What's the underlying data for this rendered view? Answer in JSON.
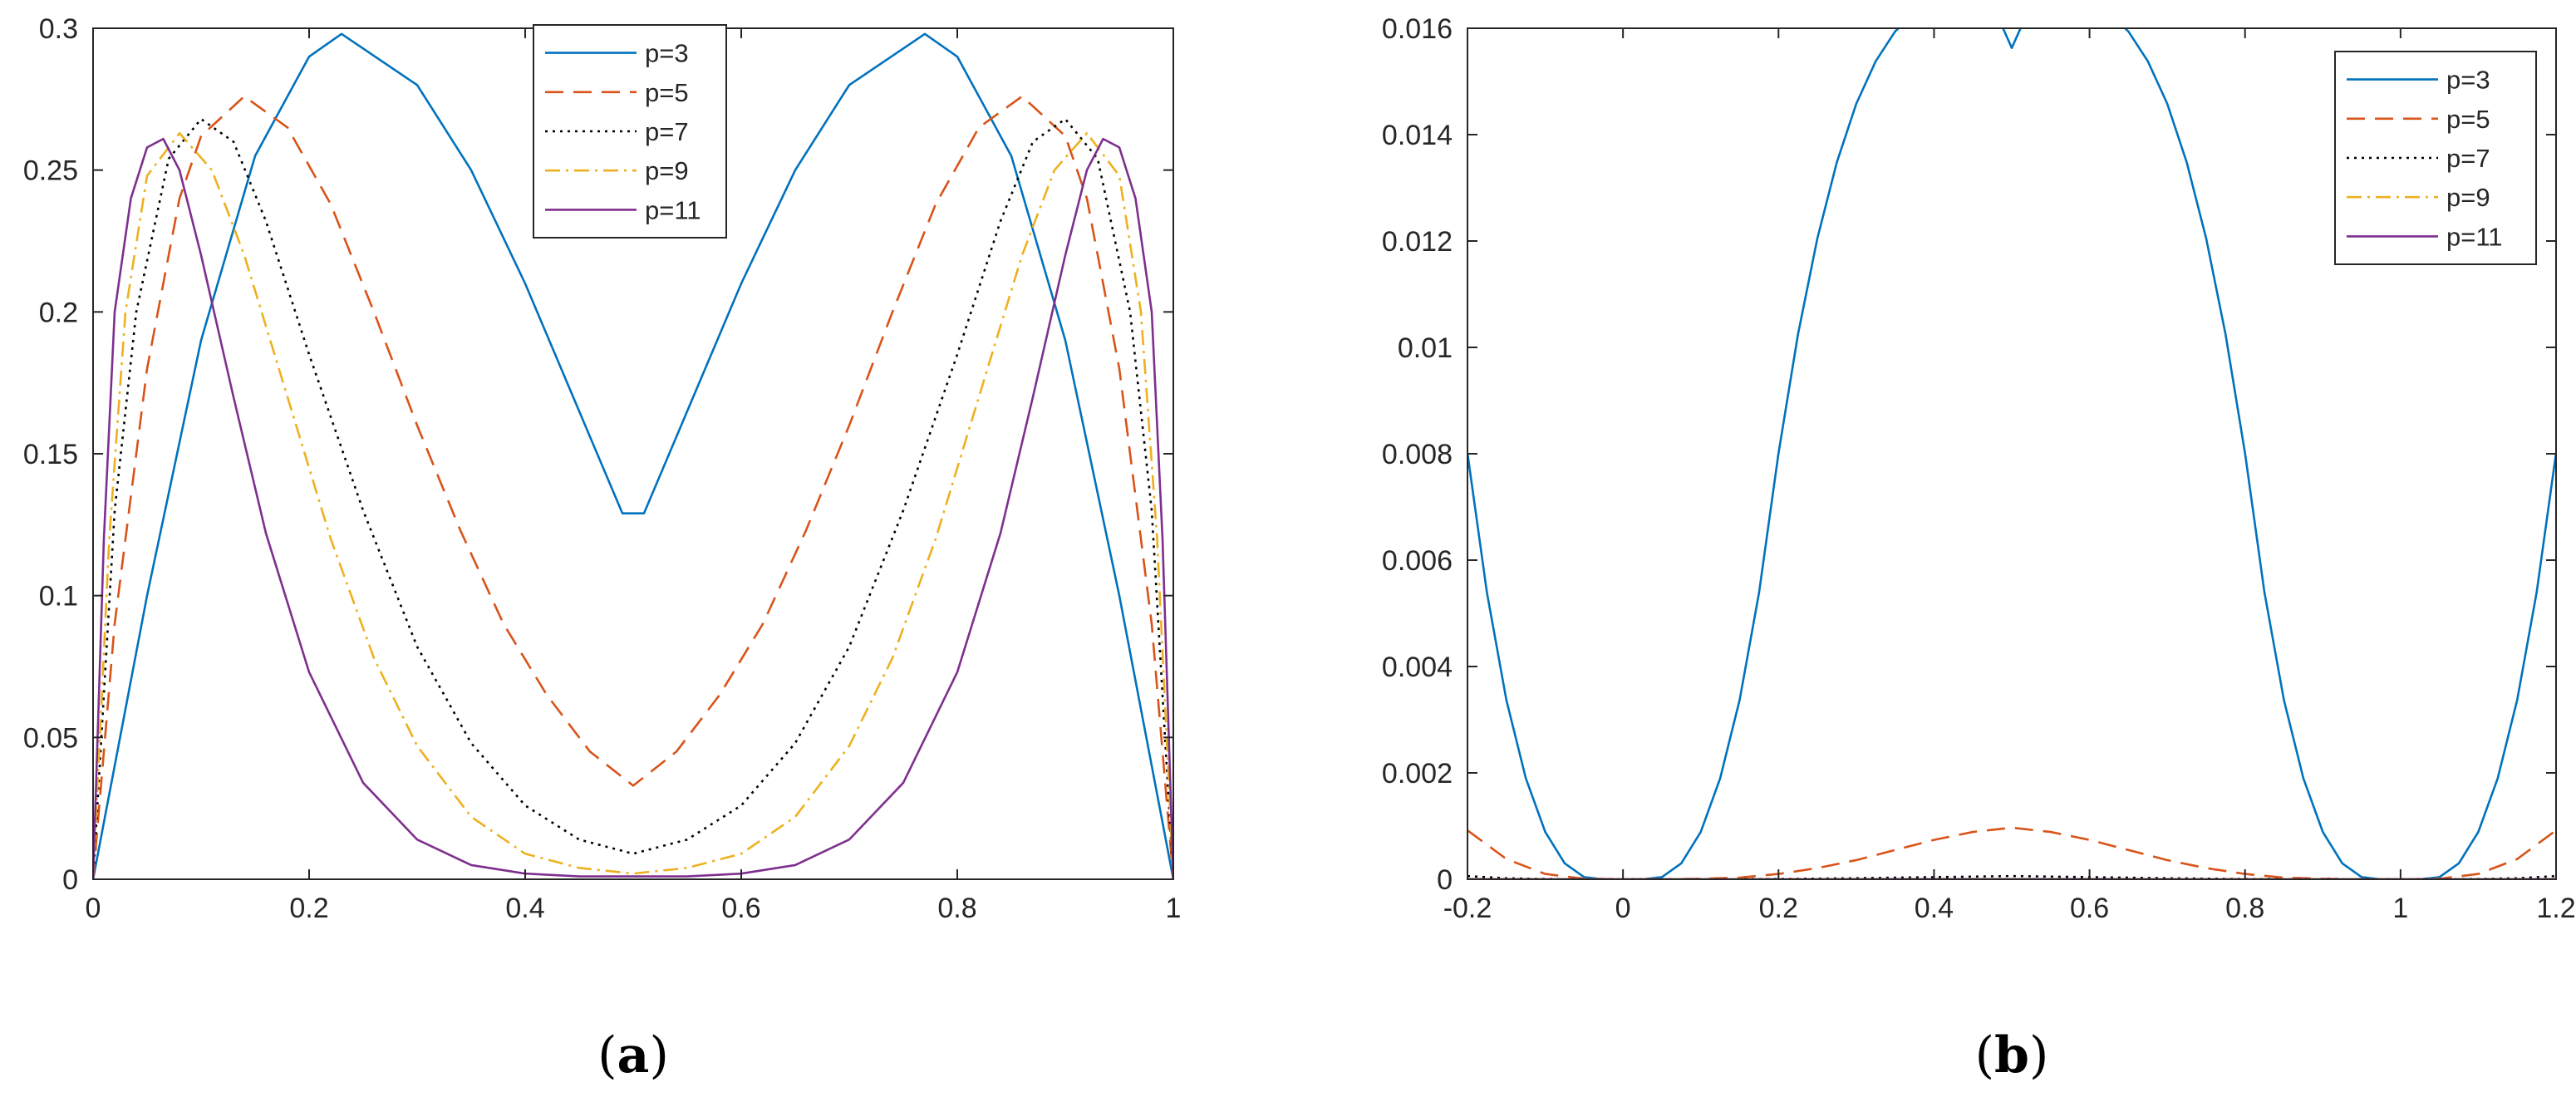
{
  "chart_data": [
    {
      "type": "line",
      "panel_label": "(a)",
      "x_range": [
        0,
        1
      ],
      "ylim": [
        0,
        0.3
      ],
      "x_ticks": [
        "0",
        "0.2",
        "0.4",
        "0.6",
        "0.8",
        "1"
      ],
      "x_tick_values": [
        0,
        0.2,
        0.4,
        0.6,
        0.8,
        1
      ],
      "y_ticks": [
        "0",
        "0.05",
        "0.1",
        "0.15",
        "0.2",
        "0.25",
        "0.3"
      ],
      "y_tick_values": [
        0,
        0.05,
        0.1,
        0.15,
        0.2,
        0.25,
        0.3
      ],
      "grid": false,
      "legend_position": "top-center",
      "series": [
        {
          "name": "p=3",
          "color": "#0072BD",
          "dash": "solid",
          "x": [
            0,
            0.05,
            0.1,
            0.15,
            0.2,
            0.23,
            0.3,
            0.35,
            0.4,
            0.45,
            0.49,
            0.51,
            0.55,
            0.6,
            0.65,
            0.7,
            0.77,
            0.8,
            0.85,
            0.9,
            0.95,
            1
          ],
          "y": [
            0,
            0.1,
            0.19,
            0.255,
            0.29,
            0.298,
            0.28,
            0.25,
            0.21,
            0.165,
            0.129,
            0.129,
            0.165,
            0.21,
            0.25,
            0.28,
            0.298,
            0.29,
            0.255,
            0.19,
            0.1,
            0
          ]
        },
        {
          "name": "p=5",
          "color": "#D95319",
          "dash": "dashed",
          "x": [
            0,
            0.02,
            0.05,
            0.08,
            0.1,
            0.14,
            0.18,
            0.22,
            0.26,
            0.3,
            0.34,
            0.38,
            0.42,
            0.46,
            0.5,
            0.54,
            0.58,
            0.62,
            0.66,
            0.7,
            0.74,
            0.78,
            0.82,
            0.86,
            0.9,
            0.92,
            0.95,
            0.98,
            1
          ],
          "y": [
            0,
            0.09,
            0.18,
            0.24,
            0.262,
            0.276,
            0.265,
            0.238,
            0.2,
            0.16,
            0.123,
            0.09,
            0.065,
            0.045,
            0.033,
            0.045,
            0.065,
            0.09,
            0.123,
            0.16,
            0.2,
            0.238,
            0.265,
            0.276,
            0.262,
            0.24,
            0.18,
            0.09,
            0
          ]
        },
        {
          "name": "p=7",
          "color": "#000000",
          "dash": "dotted",
          "x": [
            0,
            0.02,
            0.04,
            0.07,
            0.1,
            0.13,
            0.16,
            0.2,
            0.25,
            0.3,
            0.35,
            0.4,
            0.45,
            0.5,
            0.55,
            0.6,
            0.65,
            0.7,
            0.75,
            0.8,
            0.84,
            0.87,
            0.9,
            0.93,
            0.96,
            0.98,
            1
          ],
          "y": [
            0,
            0.13,
            0.2,
            0.254,
            0.268,
            0.26,
            0.232,
            0.185,
            0.13,
            0.082,
            0.048,
            0.026,
            0.014,
            0.009,
            0.014,
            0.026,
            0.048,
            0.082,
            0.13,
            0.185,
            0.232,
            0.26,
            0.268,
            0.254,
            0.2,
            0.13,
            0
          ]
        },
        {
          "name": "p=9",
          "color": "#EDB120",
          "dash": "dashdot",
          "x": [
            0,
            0.015,
            0.03,
            0.05,
            0.08,
            0.11,
            0.14,
            0.18,
            0.22,
            0.26,
            0.3,
            0.35,
            0.4,
            0.45,
            0.5,
            0.55,
            0.6,
            0.65,
            0.7,
            0.74,
            0.78,
            0.82,
            0.86,
            0.89,
            0.92,
            0.95,
            0.97,
            0.985,
            1
          ],
          "y": [
            0,
            0.12,
            0.2,
            0.248,
            0.263,
            0.25,
            0.22,
            0.17,
            0.12,
            0.078,
            0.047,
            0.022,
            0.009,
            0.004,
            0.002,
            0.004,
            0.009,
            0.022,
            0.047,
            0.078,
            0.12,
            0.17,
            0.22,
            0.25,
            0.263,
            0.248,
            0.2,
            0.12,
            0
          ]
        },
        {
          "name": "p=11",
          "color": "#7E2F8E",
          "dash": "solid",
          "x": [
            0,
            0.01,
            0.02,
            0.035,
            0.05,
            0.065,
            0.08,
            0.1,
            0.13,
            0.16,
            0.2,
            0.25,
            0.3,
            0.35,
            0.4,
            0.45,
            0.5,
            0.55,
            0.6,
            0.65,
            0.7,
            0.75,
            0.8,
            0.84,
            0.87,
            0.9,
            0.92,
            0.935,
            0.95,
            0.965,
            0.98,
            0.99,
            1
          ],
          "y": [
            0,
            0.12,
            0.2,
            0.24,
            0.258,
            0.261,
            0.25,
            0.22,
            0.17,
            0.122,
            0.073,
            0.034,
            0.014,
            0.005,
            0.002,
            0.001,
            0.001,
            0.001,
            0.002,
            0.005,
            0.014,
            0.034,
            0.073,
            0.122,
            0.17,
            0.22,
            0.25,
            0.261,
            0.258,
            0.24,
            0.2,
            0.12,
            0
          ]
        }
      ]
    },
    {
      "type": "line",
      "panel_label": "(b)",
      "x_range": [
        -0.2,
        1.2
      ],
      "ylim": [
        0,
        0.016
      ],
      "x_ticks": [
        "-0.2",
        "0",
        "0.2",
        "0.4",
        "0.6",
        "0.8",
        "1",
        "1.2"
      ],
      "x_tick_values": [
        -0.2,
        0,
        0.2,
        0.4,
        0.6,
        0.8,
        1,
        1.2
      ],
      "y_ticks": [
        "0",
        "0.002",
        "0.004",
        "0.006",
        "0.008",
        "0.01",
        "0.012",
        "0.014",
        "0.016"
      ],
      "y_tick_values": [
        0,
        0.002,
        0.004,
        0.006,
        0.008,
        0.01,
        0.012,
        0.014,
        0.016
      ],
      "grid": false,
      "legend_position": "top-right",
      "series": [
        {
          "name": "p=3",
          "color": "#0072BD",
          "dash": "solid",
          "x": [
            -0.2,
            -0.175,
            -0.15,
            -0.125,
            -0.1,
            -0.075,
            -0.05,
            -0.025,
            0,
            0.025,
            0.05,
            0.075,
            0.1,
            0.125,
            0.15,
            0.175,
            0.2,
            0.225,
            0.25,
            0.275,
            0.3,
            0.325,
            0.35,
            0.375,
            0.4,
            0.425,
            0.45,
            0.475,
            0.5,
            0.525,
            0.55,
            0.575,
            0.6,
            0.625,
            0.65,
            0.675,
            0.7,
            0.725,
            0.75,
            0.775,
            0.8,
            0.825,
            0.85,
            0.875,
            0.9,
            0.925,
            0.95,
            0.975,
            1,
            1.025,
            1.05,
            1.075,
            1.1,
            1.125,
            1.15,
            1.175,
            1.2
          ],
          "y": [
            0.00801,
            0.00539,
            0.00337,
            0.0019,
            0.00089,
            0.0003,
            4e-05,
            0.0,
            0.0,
            0.0,
            4e-05,
            0.0003,
            0.00089,
            0.0019,
            0.00337,
            0.00539,
            0.00801,
            0.01024,
            0.01205,
            0.01348,
            0.01458,
            0.01538,
            0.01594,
            0.01628,
            0.01646,
            0.01652,
            0.0165,
            0.01645,
            0.01563,
            0.01645,
            0.0165,
            0.01652,
            0.01646,
            0.01628,
            0.01594,
            0.01538,
            0.01458,
            0.01348,
            0.01205,
            0.01024,
            0.00801,
            0.00539,
            0.00337,
            0.0019,
            0.00089,
            0.0003,
            4e-05,
            0.0,
            0.0,
            0.0,
            4e-05,
            0.0003,
            0.00089,
            0.0019,
            0.00337,
            0.00539,
            0.00801
          ]
        },
        {
          "name": "p=5",
          "color": "#D95319",
          "dash": "dashed",
          "x": [
            -0.2,
            -0.15,
            -0.1,
            -0.05,
            0,
            0.05,
            0.1,
            0.15,
            0.2,
            0.25,
            0.3,
            0.35,
            0.4,
            0.45,
            0.5,
            0.55,
            0.6,
            0.65,
            0.7,
            0.75,
            0.8,
            0.85,
            0.9,
            0.95,
            1,
            1.05,
            1.1,
            1.15,
            1.2
          ],
          "y": [
            0.00092,
            0.00038,
            0.0001,
            1e-05,
            0,
            0,
            1e-05,
            3e-05,
            0.0001,
            0.00021,
            0.00036,
            0.00055,
            0.00074,
            0.00089,
            0.00097,
            0.00089,
            0.00074,
            0.00055,
            0.00036,
            0.00021,
            0.0001,
            3e-05,
            1e-05,
            0,
            0,
            1e-05,
            0.0001,
            0.00038,
            0.00092
          ]
        },
        {
          "name": "p=7",
          "color": "#000000",
          "dash": "dotted",
          "x": [
            -0.2,
            -0.15,
            -0.1,
            0,
            0.2,
            0.3,
            0.4,
            0.5,
            0.6,
            0.7,
            0.8,
            1,
            1.1,
            1.15,
            1.2
          ],
          "y": [
            6e-05,
            2e-05,
            5e-06,
            0,
            5e-06,
            2e-05,
            4e-05,
            6e-05,
            4e-05,
            2e-05,
            5e-06,
            0,
            5e-06,
            2e-05,
            6e-05
          ]
        },
        {
          "name": "p=9",
          "color": "#EDB120",
          "dash": "dashdot",
          "x": [
            -0.2,
            0,
            0.5,
            1,
            1.2
          ],
          "y": [
            4e-06,
            0,
            4e-06,
            0,
            4e-06
          ]
        },
        {
          "name": "p=11",
          "color": "#7E2F8E",
          "dash": "solid",
          "x": [
            -0.2,
            0,
            0.5,
            1,
            1.2
          ],
          "y": [
            3e-07,
            0,
            3e-07,
            0,
            3e-07
          ]
        }
      ]
    }
  ]
}
